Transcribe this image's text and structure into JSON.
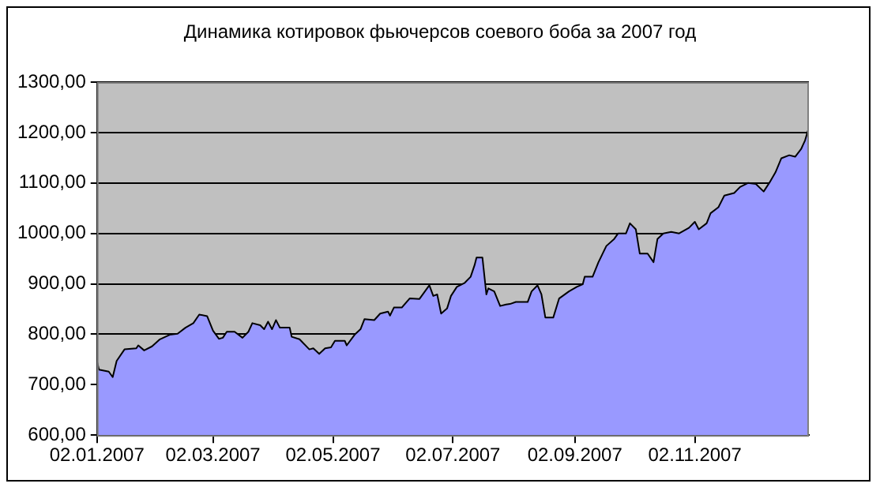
{
  "chart_data": {
    "type": "area",
    "title": "Динамика котировок фьючерсов соевого боба за 2007 год",
    "x": [
      "2007-01-02",
      "2007-01-03",
      "2007-01-08",
      "2007-01-10",
      "2007-01-12",
      "2007-01-16",
      "2007-01-22",
      "2007-01-23",
      "2007-01-26",
      "2007-01-30",
      "2007-02-03",
      "2007-02-08",
      "2007-02-12",
      "2007-02-16",
      "2007-02-20",
      "2007-02-23",
      "2007-02-27",
      "2007-03-02",
      "2007-03-05",
      "2007-03-07",
      "2007-03-09",
      "2007-03-13",
      "2007-03-17",
      "2007-03-20",
      "2007-03-22",
      "2007-03-26",
      "2007-03-28",
      "2007-03-30",
      "2007-04-01",
      "2007-04-03",
      "2007-04-05",
      "2007-04-10",
      "2007-04-11",
      "2007-04-15",
      "2007-04-20",
      "2007-04-22",
      "2007-04-25",
      "2007-04-28",
      "2007-05-01",
      "2007-05-03",
      "2007-05-08",
      "2007-05-09",
      "2007-05-13",
      "2007-05-16",
      "2007-05-18",
      "2007-05-23",
      "2007-05-26",
      "2007-05-30",
      "2007-05-31",
      "2007-06-02",
      "2007-06-06",
      "2007-06-10",
      "2007-06-15",
      "2007-06-20",
      "2007-06-22",
      "2007-06-24",
      "2007-06-26",
      "2007-06-29",
      "2007-07-01",
      "2007-07-04",
      "2007-07-08",
      "2007-07-11",
      "2007-07-13",
      "2007-07-14",
      "2007-07-17",
      "2007-07-19",
      "2007-07-20",
      "2007-07-23",
      "2007-07-26",
      "2007-07-29",
      "2007-07-31",
      "2007-08-03",
      "2007-08-09",
      "2007-08-11",
      "2007-08-14",
      "2007-08-16",
      "2007-08-18",
      "2007-08-22",
      "2007-08-25",
      "2007-08-30",
      "2007-09-03",
      "2007-09-06",
      "2007-09-07",
      "2007-09-11",
      "2007-09-14",
      "2007-09-18",
      "2007-09-22",
      "2007-09-24",
      "2007-09-28",
      "2007-09-30",
      "2007-10-03",
      "2007-10-05",
      "2007-10-09",
      "2007-10-12",
      "2007-10-14",
      "2007-10-17",
      "2007-10-21",
      "2007-10-25",
      "2007-10-30",
      "2007-11-02",
      "2007-11-04",
      "2007-11-08",
      "2007-11-10",
      "2007-11-14",
      "2007-11-17",
      "2007-11-22",
      "2007-11-25",
      "2007-11-29",
      "2007-12-03",
      "2007-12-07",
      "2007-12-10",
      "2007-12-13",
      "2007-12-16",
      "2007-12-20",
      "2007-12-23",
      "2007-12-26",
      "2007-12-28",
      "2007-12-30"
    ],
    "series": [
      {
        "color": "#9999ff",
        "values": [
          747,
          730,
          726,
          715,
          747,
          770,
          772,
          778,
          768,
          776,
          790,
          799,
          801,
          813,
          822,
          839,
          836,
          807,
          791,
          793,
          805,
          805,
          793,
          805,
          822,
          818,
          810,
          825,
          810,
          828,
          813,
          813,
          795,
          790,
          770,
          772,
          761,
          772,
          774,
          787,
          787,
          778,
          799,
          810,
          830,
          828,
          841,
          845,
          837,
          853,
          853,
          871,
          870,
          897,
          876,
          879,
          841,
          851,
          876,
          894,
          902,
          914,
          937,
          952,
          952,
          879,
          891,
          885,
          856,
          859,
          860,
          864,
          864,
          885,
          897,
          879,
          833,
          833,
          871,
          885,
          894,
          899,
          914,
          914,
          943,
          975,
          989,
          1000,
          1000,
          1020,
          1008,
          960,
          960,
          943,
          989,
          1000,
          1003,
          1000,
          1011,
          1023,
          1008,
          1020,
          1040,
          1052,
          1075,
          1080,
          1092,
          1100,
          1098,
          1083,
          1101,
          1121,
          1149,
          1155,
          1152,
          1167,
          1184,
          1210
        ]
      }
    ],
    "xlim": [
      "2007-01-02",
      "2007-12-30"
    ],
    "xticks": [
      {
        "value": "2007-01-02",
        "label": "02.01.2007"
      },
      {
        "value": "2007-03-02",
        "label": "02.03.2007"
      },
      {
        "value": "2007-05-02",
        "label": "02.05.2007"
      },
      {
        "value": "2007-07-02",
        "label": "02.07.2007"
      },
      {
        "value": "2007-09-02",
        "label": "02.09.2007"
      },
      {
        "value": "2007-11-02",
        "label": "02.11.2007"
      }
    ],
    "ylim": [
      600,
      1300
    ],
    "yticks": [
      {
        "value": 600,
        "label": "600,00"
      },
      {
        "value": 700,
        "label": "700,00"
      },
      {
        "value": 800,
        "label": "800,00"
      },
      {
        "value": 900,
        "label": "900,00"
      },
      {
        "value": 1000,
        "label": "1000,00"
      },
      {
        "value": 1100,
        "label": "1100,00"
      },
      {
        "value": 1200,
        "label": "1200,00"
      },
      {
        "value": 1300,
        "label": "1300,00"
      }
    ],
    "grid": "y",
    "legend": false
  }
}
